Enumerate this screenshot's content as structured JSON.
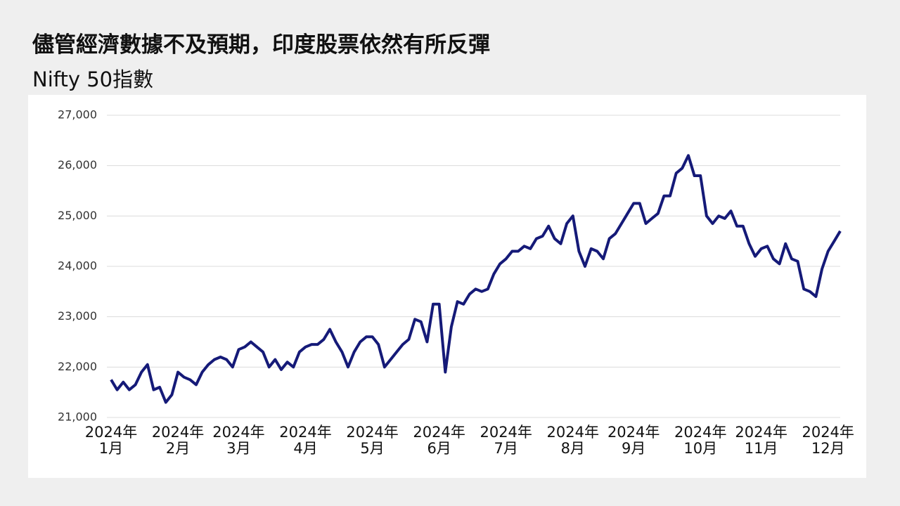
{
  "chart_data": {
    "type": "line",
    "title": "儘管經濟數據不及預期，印度股票依然有所反彈",
    "subtitle": "Nifty 50指數",
    "categories": [
      "2024年\n1月",
      null,
      null,
      null,
      null,
      null,
      null,
      null,
      null,
      null,
      null,
      "2024年\n2月",
      null,
      null,
      null,
      null,
      null,
      null,
      null,
      null,
      null,
      "2024年\n3月",
      null,
      null,
      null,
      null,
      null,
      null,
      null,
      null,
      null,
      null,
      "2024年\n4月",
      null,
      null,
      null,
      null,
      null,
      null,
      null,
      null,
      null,
      null,
      "2024年\n5月",
      null,
      null,
      null,
      null,
      null,
      null,
      null,
      null,
      null,
      null,
      "2024年\n6月",
      null,
      null,
      null,
      null,
      null,
      null,
      null,
      null,
      null,
      null,
      "2024年\n7月",
      null,
      null,
      null,
      null,
      null,
      null,
      null,
      null,
      null,
      null,
      "2024年\n8月",
      null,
      null,
      null,
      null,
      null,
      null,
      null,
      null,
      null,
      "2024年\n9月",
      null,
      null,
      null,
      null,
      null,
      null,
      null,
      null,
      null,
      null,
      "2024年\n10月",
      null,
      null,
      null,
      null,
      null,
      null,
      null,
      null,
      null,
      "2024年\n11月",
      null,
      null,
      null,
      null,
      null,
      null,
      null,
      null,
      null,
      null,
      "2024年\n12月",
      null,
      null
    ],
    "values": [
      21750,
      21550,
      21700,
      21550,
      21650,
      21900,
      22050,
      21550,
      21600,
      21300,
      21450,
      21900,
      21800,
      21750,
      21650,
      21900,
      22050,
      22150,
      22200,
      22150,
      22000,
      22350,
      22400,
      22500,
      22400,
      22300,
      22000,
      22150,
      21950,
      22100,
      22000,
      22300,
      22400,
      22450,
      22450,
      22550,
      22750,
      22500,
      22300,
      22000,
      22300,
      22500,
      22600,
      22600,
      22450,
      22000,
      22150,
      22300,
      22450,
      22550,
      22950,
      22900,
      22500,
      23250,
      23250,
      21900,
      22800,
      23300,
      23250,
      23450,
      23550,
      23500,
      23550,
      23850,
      24050,
      24150,
      24300,
      24300,
      24400,
      24350,
      24550,
      24600,
      24800,
      24550,
      24450,
      24850,
      25000,
      24300,
      24000,
      24350,
      24300,
      24150,
      24550,
      24650,
      24850,
      25050,
      25250,
      25250,
      24850,
      24950,
      25050,
      25400,
      25400,
      25850,
      25950,
      26200,
      25800,
      25800,
      25000,
      24850,
      25000,
      24950,
      25100,
      24800,
      24800,
      24450,
      24200,
      24350,
      24400,
      24150,
      24050,
      24450,
      24150,
      24100,
      23550,
      23500,
      23400,
      23950,
      24300,
      24500,
      24700
    ],
    "color": "#151a78",
    "ylim": [
      21000,
      27000
    ],
    "yticks": [
      {
        "value": 21000,
        "label": "21,000"
      },
      {
        "value": 22000,
        "label": "22,000"
      },
      {
        "value": 23000,
        "label": "23,000"
      },
      {
        "value": 24000,
        "label": "24,000"
      },
      {
        "value": 25000,
        "label": "25,000"
      },
      {
        "value": 26000,
        "label": "26,000"
      },
      {
        "value": 27000,
        "label": "27,000"
      }
    ],
    "grid": true
  }
}
